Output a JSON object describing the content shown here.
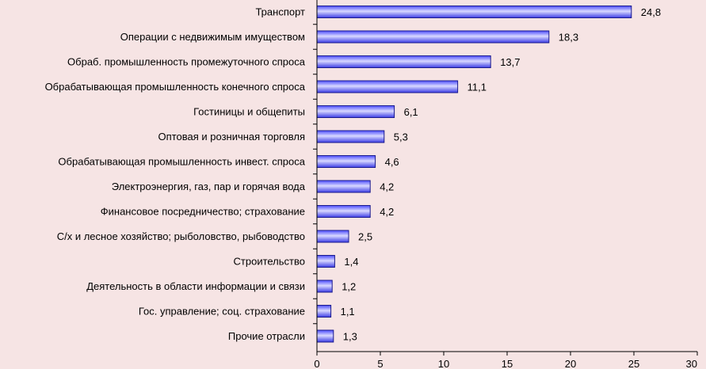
{
  "chart_data": {
    "type": "bar",
    "orientation": "horizontal",
    "categories": [
      "Транспорт",
      "Операции с недвижимым имуществом",
      "Обраб. промышленность промежуточного спроса",
      "Обрабатывающая промышленность конечного спроса",
      "Гостиницы и общепиты",
      "Оптовая и розничная торговля",
      "Обрабатывающая промышленность инвест. спроса",
      "Электроэнергия, газ, пар и горячая вода",
      "Финансовое посредничество; страхование",
      "С/х и лесное хозяйство; рыболовство, рыбоводство",
      "Строительство",
      "Деятельность в области информации и связи",
      "Гос. управление; соц. страхование",
      "Прочие отрасли"
    ],
    "values": [
      24.8,
      18.3,
      13.7,
      11.1,
      6.1,
      5.3,
      4.6,
      4.2,
      4.2,
      2.5,
      1.4,
      1.2,
      1.1,
      1.3
    ],
    "value_labels": [
      "24,8",
      "18,3",
      "13,7",
      "11,1",
      "6,1",
      "5,3",
      "4,6",
      "4,2",
      "4,2",
      "2,5",
      "1,4",
      "1,2",
      "1,1",
      "1,3"
    ],
    "xlim": [
      0,
      30
    ],
    "x_ticks": [
      0,
      5,
      10,
      15,
      20,
      25,
      30
    ],
    "x_tick_labels": [
      "0",
      "5",
      "10",
      "15",
      "20",
      "25",
      "30"
    ],
    "title": "",
    "xlabel": "",
    "ylabel": "",
    "grid": false,
    "legend": "none",
    "colors": {
      "bar_dark": "#1a1a8c",
      "bar_mid": "#4d4dff",
      "bar_light": "#d8d8ff",
      "axis": "#000000",
      "background": "#f6e4e4"
    }
  }
}
